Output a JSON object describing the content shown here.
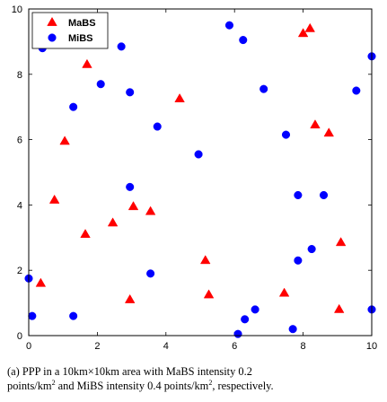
{
  "chart_data": {
    "type": "scatter",
    "xlim": [
      0,
      10
    ],
    "ylim": [
      0,
      10
    ],
    "x_ticks": [
      0,
      2,
      4,
      6,
      8,
      10
    ],
    "y_ticks": [
      0,
      2,
      4,
      6,
      8,
      10
    ],
    "grid": false,
    "legend_placement": "top-left",
    "series": [
      {
        "name": "MaBS",
        "marker": "triangle",
        "color": "#ff0000",
        "points": [
          [
            1.7,
            8.3
          ],
          [
            1.05,
            5.95
          ],
          [
            0.75,
            4.15
          ],
          [
            1.65,
            3.1
          ],
          [
            0.35,
            1.6
          ],
          [
            2.45,
            3.45
          ],
          [
            3.05,
            3.95
          ],
          [
            3.55,
            3.8
          ],
          [
            2.95,
            1.1
          ],
          [
            4.4,
            7.25
          ],
          [
            5.15,
            2.3
          ],
          [
            5.25,
            1.25
          ],
          [
            7.45,
            1.3
          ],
          [
            8.35,
            6.45
          ],
          [
            8.75,
            6.2
          ],
          [
            8.0,
            9.25
          ],
          [
            8.2,
            9.4
          ],
          [
            9.1,
            2.85
          ],
          [
            9.05,
            0.8
          ]
        ]
      },
      {
        "name": "MiBS",
        "marker": "circle",
        "color": "#0000ff",
        "points": [
          [
            0.4,
            8.8
          ],
          [
            2.7,
            8.85
          ],
          [
            2.1,
            7.7
          ],
          [
            2.95,
            7.45
          ],
          [
            1.3,
            7.0
          ],
          [
            3.75,
            6.4
          ],
          [
            4.95,
            5.55
          ],
          [
            5.85,
            9.5
          ],
          [
            6.25,
            9.05
          ],
          [
            6.85,
            7.55
          ],
          [
            7.5,
            6.15
          ],
          [
            9.55,
            7.5
          ],
          [
            10.0,
            8.55
          ],
          [
            2.95,
            4.55
          ],
          [
            7.85,
            4.3
          ],
          [
            8.6,
            4.3
          ],
          [
            3.55,
            1.9
          ],
          [
            8.25,
            2.65
          ],
          [
            7.85,
            2.3
          ],
          [
            0.0,
            1.75
          ],
          [
            0.1,
            0.6
          ],
          [
            1.3,
            0.6
          ],
          [
            6.1,
            0.05
          ],
          [
            6.3,
            0.5
          ],
          [
            6.6,
            0.8
          ],
          [
            7.7,
            0.2
          ],
          [
            10.0,
            0.8
          ]
        ]
      }
    ]
  },
  "caption": {
    "line1": "(a) PPP in a 10km×10km area with MaBS intensity 0.2",
    "line2_a": "points/km",
    "line2_sup_a": "2",
    "line2_b": " and MiBS intensity 0.4 points/km",
    "line2_sup_b": "2",
    "line2_c": ", respectively."
  }
}
